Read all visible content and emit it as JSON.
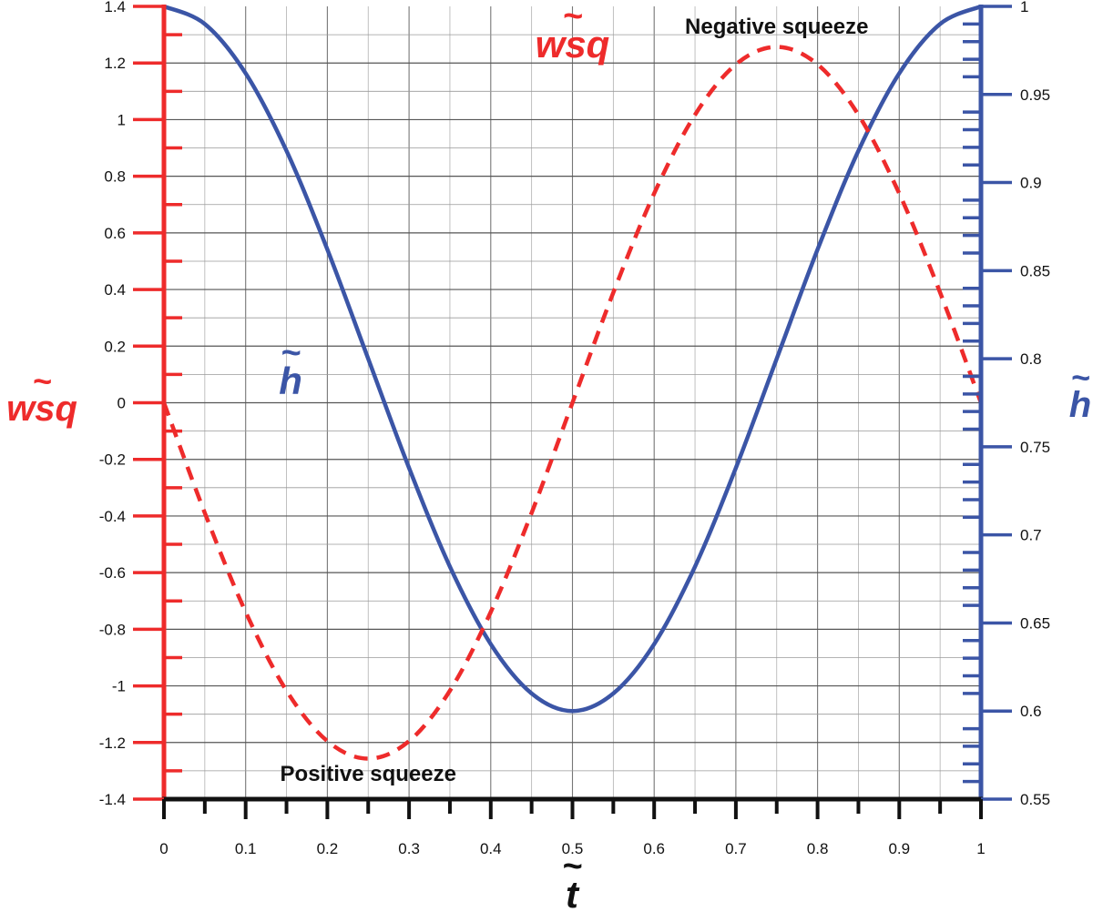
{
  "chart_data": {
    "type": "line",
    "x_axis": {
      "label": "t",
      "label_accent": "~",
      "range": [
        0,
        1
      ],
      "ticks": [
        "0",
        "0.1",
        "0.2",
        "0.3",
        "0.4",
        "0.5",
        "0.6",
        "0.7",
        "0.8",
        "0.9",
        "1"
      ]
    },
    "y_left": {
      "label": "wsq",
      "label_accent": "~",
      "range": [
        -1.4,
        1.4
      ],
      "ticks": [
        "1.4",
        "1.2",
        "1",
        "0.8",
        "0.6",
        "0.4",
        "0.2",
        "0",
        "-0.2",
        "-0.4",
        "-0.6",
        "-0.8",
        "-1",
        "-1.2",
        "-1.4"
      ],
      "color": "#ee2b2b"
    },
    "y_right": {
      "label": "h",
      "label_accent": "~",
      "range": [
        0.55,
        1
      ],
      "ticks": [
        "1",
        "0.95",
        "0.9",
        "0.85",
        "0.8",
        "0.75",
        "0.7",
        "0.65",
        "0.6",
        "0.55"
      ],
      "color": "#3b55a6"
    },
    "grid": true,
    "series": [
      {
        "name": "h",
        "axis": "right",
        "style": "solid",
        "color": "#3b55a6",
        "x": [
          0,
          0.05,
          0.1,
          0.15,
          0.2,
          0.25,
          0.3,
          0.35,
          0.4,
          0.45,
          0.5,
          0.55,
          0.6,
          0.65,
          0.7,
          0.75,
          0.8,
          0.85,
          0.9,
          0.95,
          1
        ],
        "y": [
          1.0,
          0.99,
          0.962,
          0.918,
          0.862,
          0.8,
          0.738,
          0.682,
          0.638,
          0.61,
          0.6,
          0.61,
          0.638,
          0.682,
          0.738,
          0.8,
          0.862,
          0.918,
          0.962,
          0.99,
          1.0
        ]
      },
      {
        "name": "wsq",
        "axis": "left",
        "style": "dashed",
        "color": "#ee2b2b",
        "x": [
          0,
          0.05,
          0.1,
          0.15,
          0.2,
          0.25,
          0.3,
          0.35,
          0.4,
          0.45,
          0.5,
          0.55,
          0.6,
          0.65,
          0.7,
          0.75,
          0.8,
          0.85,
          0.9,
          0.95,
          1
        ],
        "y": [
          0,
          -0.389,
          -0.739,
          -1.017,
          -1.195,
          -1.257,
          -1.195,
          -1.017,
          -0.739,
          -0.389,
          0,
          0.389,
          0.739,
          1.017,
          1.195,
          1.257,
          1.195,
          1.017,
          0.739,
          0.389,
          0
        ]
      }
    ],
    "annotations": [
      {
        "text": "Negative squeeze",
        "x": 0.75,
        "y": 1.33
      },
      {
        "text": "Positive squeeze",
        "x": 0.25,
        "y": -1.31
      }
    ],
    "inline_labels": [
      {
        "series": "h",
        "text": "h",
        "accent": "~",
        "x": 0.155,
        "y": 0.78
      },
      {
        "series": "wsq",
        "text": "wsq",
        "accent": "~",
        "x": 0.5,
        "y": 1.22
      }
    ]
  }
}
